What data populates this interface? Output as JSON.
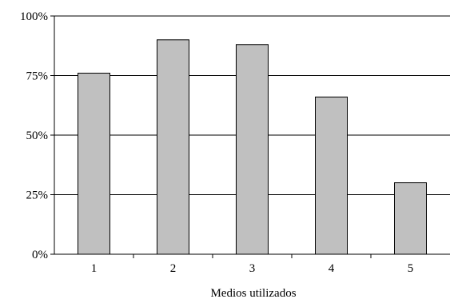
{
  "chart_data": {
    "type": "bar",
    "title": "",
    "xlabel": "Medios utilizados",
    "ylabel": "",
    "categories": [
      "1",
      "2",
      "3",
      "4",
      "5"
    ],
    "values": [
      76,
      90,
      88,
      66,
      30
    ],
    "ylim": [
      0,
      100
    ],
    "yticks": [
      0,
      25,
      50,
      75,
      100
    ],
    "ytick_labels": [
      "0%",
      "25%",
      "50%",
      "75%",
      "100%"
    ],
    "grid": "horizontal",
    "legend": "none",
    "bar_color": "#c0c0c0",
    "bar_edge_color": "#000000"
  }
}
